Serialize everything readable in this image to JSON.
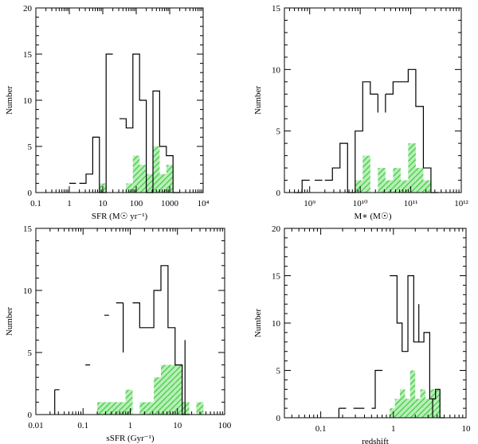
{
  "colors": {
    "hatch_fill": "#44cc44",
    "hatch_light": "#b8eeb8",
    "outline": "#000000"
  },
  "chart_data": [
    {
      "type": "histogram",
      "id": "sfr",
      "xlabel": "SFR (M☉ yr⁻¹)",
      "ylabel": "Number",
      "xscale": "log",
      "xlim_log10": [
        -1,
        4
      ],
      "ylim": [
        0,
        20
      ],
      "xticks": [
        {
          "pos": -1,
          "label": "0.1"
        },
        {
          "pos": 0,
          "label": "1"
        },
        {
          "pos": 1,
          "label": "10"
        },
        {
          "pos": 2,
          "label": "100"
        },
        {
          "pos": 3,
          "label": "1000"
        },
        {
          "pos": 4,
          "label": "10⁴"
        }
      ],
      "yticks": [
        0,
        5,
        10,
        15,
        20
      ],
      "yminor": 1,
      "xminor_log": true,
      "outline_segments": [
        {
          "x0_log10": 0.0,
          "x1_log10": 0.2,
          "y": 1
        },
        {
          "x0_log10": 0.3,
          "x1_log10": 0.5,
          "y": 1
        },
        {
          "x0_log10": 0.5,
          "x1_log10": 0.7,
          "y": 2
        },
        {
          "x0_log10": 0.7,
          "x1_log10": 0.9,
          "y": 6
        },
        {
          "x0_log10": 0.9,
          "x1_log10": 1.1,
          "y": 0
        },
        {
          "x0_log10": 1.1,
          "x1_log10": 1.3,
          "y": 15
        },
        {
          "x0_log10": 1.5,
          "x1_log10": 1.7,
          "y": 8
        },
        {
          "x0_log10": 1.7,
          "x1_log10": 1.9,
          "y": 7
        },
        {
          "x0_log10": 1.9,
          "x1_log10": 2.1,
          "y": 15
        },
        {
          "x0_log10": 2.1,
          "x1_log10": 2.3,
          "y": 10
        },
        {
          "x0_log10": 2.3,
          "x1_log10": 2.5,
          "y": 0
        },
        {
          "x0_log10": 2.5,
          "x1_log10": 2.7,
          "y": 11
        },
        {
          "x0_log10": 2.7,
          "x1_log10": 2.9,
          "y": 5
        },
        {
          "x0_log10": 2.9,
          "x1_log10": 3.1,
          "y": 4
        },
        {
          "x0_log10": 3.1,
          "x1_log10": 3.3,
          "y": 0
        }
      ],
      "hatched_bins": [
        {
          "x0_log10": 0.9,
          "x1_log10": 1.1,
          "y": 1
        },
        {
          "x0_log10": 1.7,
          "x1_log10": 1.9,
          "y": 1
        },
        {
          "x0_log10": 1.9,
          "x1_log10": 2.1,
          "y": 4
        },
        {
          "x0_log10": 2.1,
          "x1_log10": 2.3,
          "y": 3
        },
        {
          "x0_log10": 2.3,
          "x1_log10": 2.5,
          "y": 2
        },
        {
          "x0_log10": 2.5,
          "x1_log10": 2.7,
          "y": 5
        },
        {
          "x0_log10": 2.7,
          "x1_log10": 2.9,
          "y": 2
        },
        {
          "x0_log10": 2.9,
          "x1_log10": 3.1,
          "y": 3
        }
      ]
    },
    {
      "type": "histogram",
      "id": "mstar",
      "xlabel": "M∗ (M☉)",
      "ylabel": "Number",
      "xscale": "log",
      "xlim_log10": [
        8.5,
        12
      ],
      "ylim": [
        0,
        15
      ],
      "xticks": [
        {
          "pos": 9,
          "label": "10⁹"
        },
        {
          "pos": 10,
          "label": "10¹⁰"
        },
        {
          "pos": 11,
          "label": "10¹¹"
        },
        {
          "pos": 12,
          "label": "10¹²"
        }
      ],
      "yticks": [
        0,
        5,
        10,
        15
      ],
      "yminor": 1,
      "xminor_log": true,
      "outline_segments": [
        {
          "x0_log10": 8.7,
          "x1_log10": 8.85,
          "y": 0
        },
        {
          "x0_log10": 8.85,
          "x1_log10": 9.0,
          "y": 1
        },
        {
          "x0_log10": 9.1,
          "x1_log10": 9.25,
          "y": 1
        },
        {
          "x0_log10": 9.3,
          "x1_log10": 9.45,
          "y": 1
        },
        {
          "x0_log10": 9.45,
          "x1_log10": 9.6,
          "y": 2
        },
        {
          "x0_log10": 9.6,
          "x1_log10": 9.75,
          "y": 4
        },
        {
          "x0_log10": 9.75,
          "x1_log10": 9.9,
          "y": 0
        },
        {
          "x0_log10": 9.9,
          "x1_log10": 10.05,
          "y": 5
        },
        {
          "x0_log10": 10.05,
          "x1_log10": 10.2,
          "y": 9
        },
        {
          "x0_log10": 10.2,
          "x1_log10": 10.35,
          "y": 8
        },
        {
          "x0_log10": 10.5,
          "x1_log10": 10.65,
          "y": 8
        },
        {
          "x0_log10": 10.65,
          "x1_log10": 10.8,
          "y": 9
        },
        {
          "x0_log10": 10.8,
          "x1_log10": 10.95,
          "y": 9
        },
        {
          "x0_log10": 10.95,
          "x1_log10": 11.1,
          "y": 10
        },
        {
          "x0_log10": 11.1,
          "x1_log10": 11.25,
          "y": 7
        },
        {
          "x0_log10": 11.25,
          "x1_log10": 11.4,
          "y": 2
        },
        {
          "x0_log10": 11.4,
          "x1_log10": 11.55,
          "y": 0
        }
      ],
      "extra_verticals": [
        {
          "x_log10": 10.35,
          "y0": 6.5,
          "y1": 8
        },
        {
          "x_log10": 10.5,
          "y0": 6.5,
          "y1": 8
        }
      ],
      "hatched_bins": [
        {
          "x0_log10": 9.9,
          "x1_log10": 10.05,
          "y": 1
        },
        {
          "x0_log10": 10.05,
          "x1_log10": 10.2,
          "y": 3
        },
        {
          "x0_log10": 10.35,
          "x1_log10": 10.5,
          "y": 2
        },
        {
          "x0_log10": 10.5,
          "x1_log10": 10.65,
          "y": 1
        },
        {
          "x0_log10": 10.65,
          "x1_log10": 10.8,
          "y": 2
        },
        {
          "x0_log10": 10.8,
          "x1_log10": 10.95,
          "y": 1
        },
        {
          "x0_log10": 10.95,
          "x1_log10": 11.1,
          "y": 4
        },
        {
          "x0_log10": 11.1,
          "x1_log10": 11.25,
          "y": 2
        },
        {
          "x0_log10": 11.25,
          "x1_log10": 11.4,
          "y": 1
        }
      ]
    },
    {
      "type": "histogram",
      "id": "ssfr",
      "xlabel": "sSFR (Gyr⁻¹)",
      "ylabel": "Number",
      "xscale": "log",
      "xlim_log10": [
        -2,
        2
      ],
      "ylim": [
        0,
        15
      ],
      "xticks": [
        {
          "pos": -2,
          "label": "0.01"
        },
        {
          "pos": -1,
          "label": "0.1"
        },
        {
          "pos": 0,
          "label": "1"
        },
        {
          "pos": 1,
          "label": "10"
        },
        {
          "pos": 2,
          "label": "100"
        }
      ],
      "yticks": [
        0,
        5,
        10,
        15
      ],
      "yminor": 1,
      "xminor_log": true,
      "outline_segments": [
        {
          "x0_log10": -1.6,
          "x1_log10": -1.5,
          "y": 2
        },
        {
          "x0_log10": -0.95,
          "x1_log10": -0.85,
          "y": 4
        },
        {
          "x0_log10": -0.55,
          "x1_log10": -0.45,
          "y": 8
        },
        {
          "x0_log10": -0.3,
          "x1_log10": -0.15,
          "y": 9
        },
        {
          "x0_log10": 0.05,
          "x1_log10": 0.2,
          "y": 9
        },
        {
          "x0_log10": 0.2,
          "x1_log10": 0.35,
          "y": 7
        },
        {
          "x0_log10": 0.35,
          "x1_log10": 0.5,
          "y": 7
        },
        {
          "x0_log10": 0.5,
          "x1_log10": 0.65,
          "y": 10
        },
        {
          "x0_log10": 0.65,
          "x1_log10": 0.8,
          "y": 12
        },
        {
          "x0_log10": 0.8,
          "x1_log10": 0.95,
          "y": 7
        },
        {
          "x0_log10": 0.95,
          "x1_log10": 1.1,
          "y": 4
        },
        {
          "x0_log10": 1.1,
          "x1_log10": 1.25,
          "y": 0
        }
      ],
      "extra_verticals": [
        {
          "x_log10": -1.6,
          "y0": 0,
          "y1": 2
        },
        {
          "x_log10": -0.15,
          "y0": 5,
          "y1": 9
        },
        {
          "x_log10": 1.16,
          "y0": 0,
          "y1": 6
        }
      ],
      "hatched_bins": [
        {
          "x0_log10": -0.7,
          "x1_log10": -0.55,
          "y": 1
        },
        {
          "x0_log10": -0.55,
          "x1_log10": -0.4,
          "y": 1
        },
        {
          "x0_log10": -0.4,
          "x1_log10": -0.25,
          "y": 1
        },
        {
          "x0_log10": -0.25,
          "x1_log10": -0.1,
          "y": 1
        },
        {
          "x0_log10": -0.1,
          "x1_log10": 0.05,
          "y": 2
        },
        {
          "x0_log10": 0.05,
          "x1_log10": 0.2,
          "y": 0
        },
        {
          "x0_log10": 0.2,
          "x1_log10": 0.35,
          "y": 1
        },
        {
          "x0_log10": 0.35,
          "x1_log10": 0.5,
          "y": 1
        },
        {
          "x0_log10": 0.5,
          "x1_log10": 0.65,
          "y": 3
        },
        {
          "x0_log10": 0.65,
          "x1_log10": 0.8,
          "y": 4
        },
        {
          "x0_log10": 0.8,
          "x1_log10": 0.95,
          "y": 4
        },
        {
          "x0_log10": 0.95,
          "x1_log10": 1.1,
          "y": 4
        },
        {
          "x0_log10": 1.1,
          "x1_log10": 1.25,
          "y": 1
        },
        {
          "x0_log10": 1.25,
          "x1_log10": 1.4,
          "y": 0
        },
        {
          "x0_log10": 1.4,
          "x1_log10": 1.55,
          "y": 1
        }
      ]
    },
    {
      "type": "histogram",
      "id": "redshift",
      "xlabel": "redshift",
      "ylabel": "Number",
      "xscale": "log",
      "xlim_log10": [
        -1.5,
        1
      ],
      "ylim": [
        0,
        20
      ],
      "xticks": [
        {
          "pos": -1,
          "label": "0.1"
        },
        {
          "pos": 0,
          "label": "1"
        },
        {
          "pos": 1,
          "label": "10"
        }
      ],
      "yticks": [
        0,
        5,
        10,
        15,
        20
      ],
      "yminor": 1,
      "xminor_log": true,
      "outline_segments": [
        {
          "x0_log10": -0.75,
          "x1_log10": -0.65,
          "y": 1
        },
        {
          "x0_log10": -0.55,
          "x1_log10": -0.4,
          "y": 1
        },
        {
          "x0_log10": -0.3,
          "x1_log10": -0.25,
          "y": 1
        },
        {
          "x0_log10": -0.25,
          "x1_log10": -0.15,
          "y": 5
        },
        {
          "x0_log10": -0.05,
          "x1_log10": 0.05,
          "y": 15
        },
        {
          "x0_log10": 0.05,
          "x1_log10": 0.12,
          "y": 10
        },
        {
          "x0_log10": 0.12,
          "x1_log10": 0.2,
          "y": 7
        },
        {
          "x0_log10": 0.2,
          "x1_log10": 0.28,
          "y": 15
        },
        {
          "x0_log10": 0.28,
          "x1_log10": 0.35,
          "y": 8
        },
        {
          "x0_log10": 0.35,
          "x1_log10": 0.42,
          "y": 8
        },
        {
          "x0_log10": 0.42,
          "x1_log10": 0.5,
          "y": 9
        },
        {
          "x0_log10": 0.5,
          "x1_log10": 0.58,
          "y": 2
        },
        {
          "x0_log10": 0.58,
          "x1_log10": 0.64,
          "y": 3
        },
        {
          "x0_log10": 0.64,
          "x1_log10": 0.7,
          "y": 0
        }
      ],
      "extra_verticals": [
        {
          "x_log10": -0.75,
          "y0": 0,
          "y1": 1
        },
        {
          "x_log10": 0.35,
          "y0": 8,
          "y1": 12
        },
        {
          "x_log10": 0.54,
          "y0": 0,
          "y1": 2
        }
      ],
      "hatched_bins": [
        {
          "x0_log10": -0.05,
          "x1_log10": 0.02,
          "y": 1
        },
        {
          "x0_log10": 0.02,
          "x1_log10": 0.09,
          "y": 2
        },
        {
          "x0_log10": 0.09,
          "x1_log10": 0.16,
          "y": 3
        },
        {
          "x0_log10": 0.16,
          "x1_log10": 0.23,
          "y": 2
        },
        {
          "x0_log10": 0.23,
          "x1_log10": 0.3,
          "y": 5
        },
        {
          "x0_log10": 0.3,
          "x1_log10": 0.37,
          "y": 2
        },
        {
          "x0_log10": 0.37,
          "x1_log10": 0.44,
          "y": 3
        },
        {
          "x0_log10": 0.44,
          "x1_log10": 0.51,
          "y": 2
        },
        {
          "x0_log10": 0.51,
          "x1_log10": 0.58,
          "y": 3
        },
        {
          "x0_log10": 0.58,
          "x1_log10": 0.65,
          "y": 3
        }
      ]
    }
  ]
}
